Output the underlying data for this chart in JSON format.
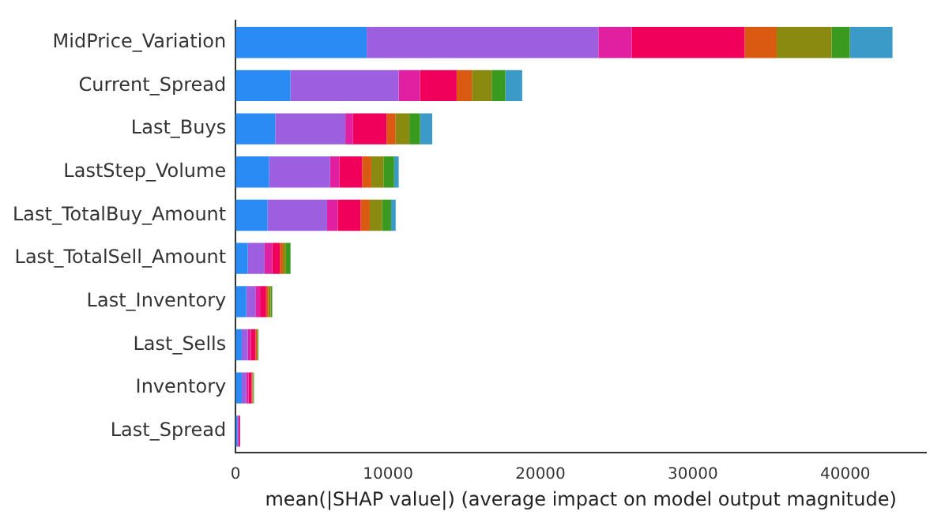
{
  "chart_data": {
    "type": "bar",
    "orientation": "horizontal",
    "stacked": true,
    "xlabel": "mean(|SHAP value|) (average impact on model output magnitude)",
    "categories": [
      "MidPrice_Variation",
      "Current_Spread",
      "Last_Buys",
      "LastStep_Volume",
      "Last_TotalBuy_Amount",
      "Last_TotalSell_Amount",
      "Last_Inventory",
      "Last_Sells",
      "Inventory",
      "Last_Spread"
    ],
    "series": [
      {
        "color": "#2a8bf5",
        "values": [
          8600,
          3600,
          2600,
          2200,
          2100,
          800,
          700,
          400,
          400,
          100
        ]
      },
      {
        "color": "#9d5ee0",
        "values": [
          15200,
          7100,
          4600,
          4000,
          3900,
          1100,
          600,
          400,
          300,
          100
        ]
      },
      {
        "color": "#e020a0",
        "values": [
          2200,
          1400,
          500,
          600,
          700,
          500,
          300,
          200,
          150,
          50
        ]
      },
      {
        "color": "#f0005a",
        "values": [
          7400,
          2400,
          2200,
          1500,
          1500,
          500,
          400,
          300,
          200,
          50
        ]
      },
      {
        "color": "#d95a10",
        "values": [
          2100,
          1000,
          600,
          600,
          600,
          200,
          150,
          100,
          50,
          0
        ]
      },
      {
        "color": "#8a8a10",
        "values": [
          3600,
          1300,
          900,
          800,
          800,
          200,
          150,
          50,
          50,
          0
        ]
      },
      {
        "color": "#3a9a20",
        "values": [
          1200,
          900,
          700,
          700,
          600,
          300,
          100,
          50,
          50,
          0
        ]
      },
      {
        "color": "#3c9ac8",
        "values": [
          2800,
          1100,
          800,
          300,
          300,
          0,
          0,
          0,
          0,
          0
        ]
      }
    ],
    "xlim": [
      0,
      45300
    ],
    "xticks": [
      0,
      10000,
      20000,
      30000,
      40000
    ],
    "grid": false,
    "legend": false
  }
}
